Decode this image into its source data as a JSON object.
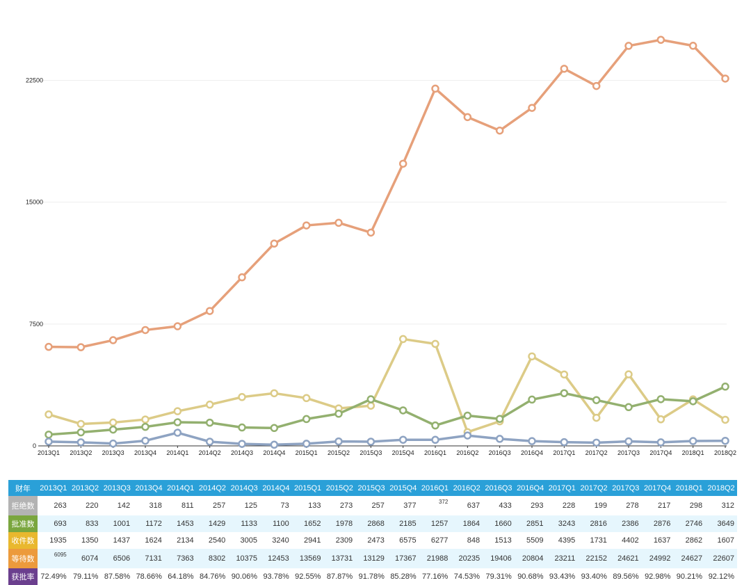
{
  "chart_data": {
    "type": "line",
    "title": "",
    "xlabel": "",
    "ylabel": "",
    "ylim": [
      0,
      27700
    ],
    "yticks": [
      0,
      7500,
      15000,
      22500
    ],
    "ytick_labels": [
      "0",
      "7500",
      "15000",
      "22500"
    ],
    "grid": true,
    "categories": [
      "2013Q1",
      "2013Q2",
      "2013Q3",
      "2013Q4",
      "2014Q1",
      "2014Q2",
      "2014Q3",
      "2014Q4",
      "2015Q1",
      "2015Q2",
      "2015Q3",
      "2015Q4",
      "2016Q1",
      "2016Q2",
      "2016Q3",
      "2016Q4",
      "2017Q1",
      "2017Q2",
      "2017Q3",
      "2017Q4",
      "2018Q1",
      "2018Q2"
    ],
    "series": [
      {
        "name": "等待数",
        "color": "#e6a07a",
        "values": [
          6095,
          6074,
          6506,
          7131,
          7363,
          8302,
          10375,
          12453,
          13569,
          13731,
          13129,
          17367,
          21988,
          20235,
          19406,
          20804,
          23211,
          22152,
          24621,
          24992,
          24627,
          22607
        ]
      },
      {
        "name": "收件数",
        "color": "#dccb87",
        "values": [
          1935,
          1350,
          1437,
          1624,
          2134,
          2540,
          3005,
          3240,
          2941,
          2309,
          2473,
          6575,
          6277,
          848,
          1513,
          5509,
          4395,
          1731,
          4402,
          1637,
          2862,
          1607
        ]
      },
      {
        "name": "批准数",
        "color": "#93b06f",
        "values": [
          693,
          833,
          1001,
          1172,
          1453,
          1429,
          1133,
          1100,
          1652,
          1978,
          2868,
          2185,
          1257,
          1864,
          1660,
          2851,
          3243,
          2816,
          2386,
          2876,
          2746,
          3649
        ]
      },
      {
        "name": "拒绝数",
        "color": "#8ea3c2",
        "values": [
          263,
          220,
          142,
          318,
          811,
          257,
          125,
          73,
          133,
          273,
          257,
          377,
          372,
          637,
          433,
          293,
          228,
          199,
          278,
          217,
          298,
          312
        ]
      }
    ]
  },
  "table": {
    "header_label": "财年",
    "header_color": "#2aa0d8",
    "rows": [
      {
        "label": "拒绝数",
        "color": "#b3b3b3",
        "values": [
          "263",
          "220",
          "142",
          "318",
          "811",
          "257",
          "125",
          "73",
          "133",
          "273",
          "257",
          "377",
          "372",
          "637",
          "433",
          "293",
          "228",
          "199",
          "278",
          "217",
          "298",
          "312"
        ]
      },
      {
        "label": "批准数",
        "color": "#7aa63e",
        "values": [
          "693",
          "833",
          "1001",
          "1172",
          "1453",
          "1429",
          "1133",
          "1100",
          "1652",
          "1978",
          "2868",
          "2185",
          "1257",
          "1864",
          "1660",
          "2851",
          "3243",
          "2816",
          "2386",
          "2876",
          "2746",
          "3649"
        ]
      },
      {
        "label": "收件数",
        "color": "#e9b82e",
        "values": [
          "1935",
          "1350",
          "1437",
          "1624",
          "2134",
          "2540",
          "3005",
          "3240",
          "2941",
          "2309",
          "2473",
          "6575",
          "6277",
          "848",
          "1513",
          "5509",
          "4395",
          "1731",
          "4402",
          "1637",
          "2862",
          "1607"
        ]
      },
      {
        "label": "等待数",
        "color": "#ec9a3c",
        "values": [
          "6095",
          "6074",
          "6506",
          "7131",
          "7363",
          "8302",
          "10375",
          "12453",
          "13569",
          "13731",
          "13129",
          "17367",
          "21988",
          "20235",
          "19406",
          "20804",
          "23211",
          "22152",
          "24621",
          "24992",
          "24627",
          "22607"
        ]
      },
      {
        "label": "获批率",
        "color": "#6b3f8e",
        "values": [
          "72.49%",
          "79.11%",
          "87.58%",
          "78.66%",
          "64.18%",
          "84.76%",
          "90.06%",
          "93.78%",
          "92.55%",
          "87.87%",
          "91.78%",
          "85.28%",
          "77.16%",
          "74.53%",
          "79.31%",
          "90.68%",
          "93.43%",
          "93.40%",
          "89.56%",
          "92.98%",
          "90.21%",
          "92.12%"
        ]
      }
    ]
  }
}
